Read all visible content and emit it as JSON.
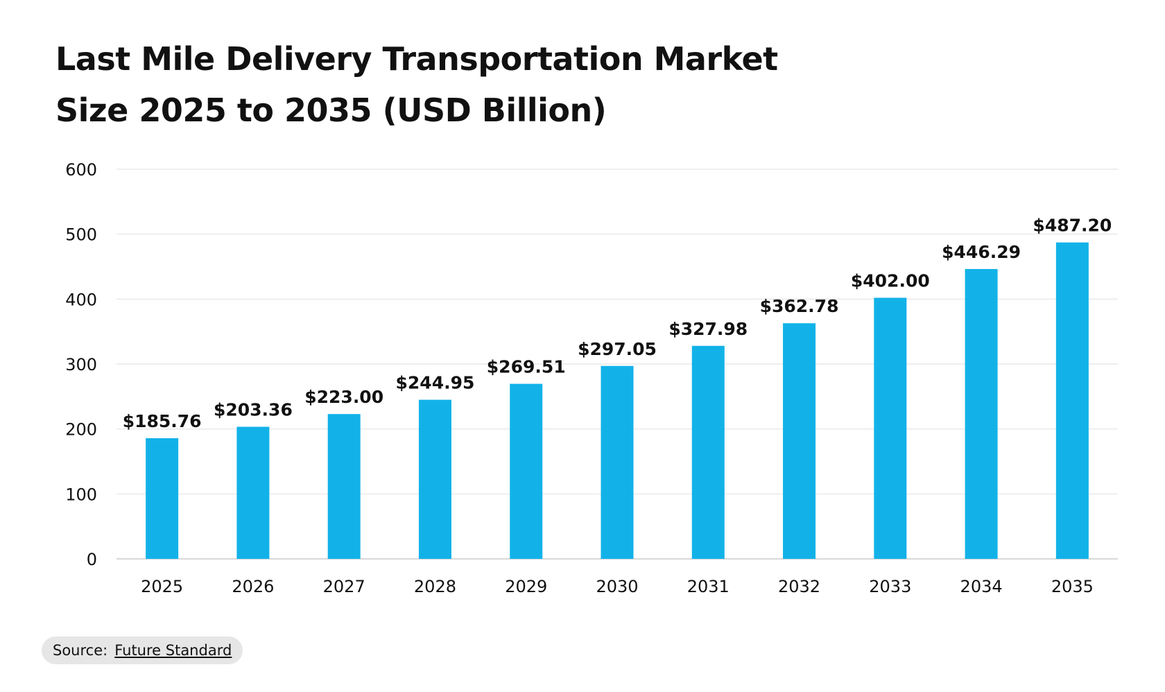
{
  "chart_data": {
    "type": "bar",
    "title_lines": [
      "Last Mile Delivery Transportation Market",
      "Size 2025 to 2035 (USD Billion)"
    ],
    "categories": [
      "2025",
      "2026",
      "2027",
      "2028",
      "2029",
      "2030",
      "2031",
      "2032",
      "2033",
      "2034",
      "2035"
    ],
    "values": [
      185.76,
      203.36,
      223.0,
      244.95,
      269.51,
      297.05,
      327.98,
      362.78,
      402.0,
      446.29,
      487.2
    ],
    "data_labels": [
      "$185.76",
      "$203.36",
      "$223.00",
      "$244.95",
      "$269.51",
      "$297.05",
      "$327.98",
      "$362.78",
      "$402.00",
      "$446.29",
      "$487.20"
    ],
    "yticks": [
      "0",
      "100",
      "200",
      "300",
      "400",
      "500",
      "600"
    ],
    "ylim": [
      0,
      600
    ],
    "xlabel": "",
    "ylabel": "",
    "grid": true,
    "bar_color": "#12b2e8",
    "grid_color": "#eeeeee",
    "axis_color": "#dddddd"
  },
  "source": {
    "label": "Source:",
    "link_text": "Future Standard"
  }
}
